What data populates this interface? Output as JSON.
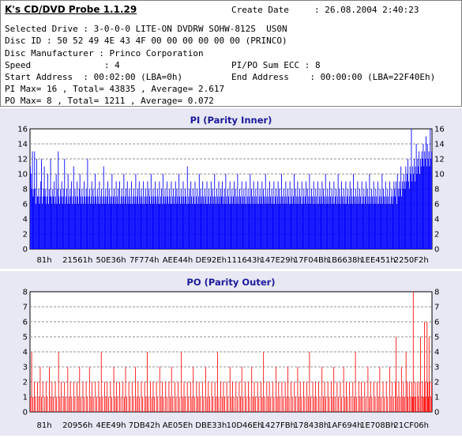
{
  "app_title": "K's CD/DVD Probe 1.1.29",
  "info": {
    "create_date_label": "Create Date",
    "create_date_value": ": 26.08.2004 2:40:23",
    "selected_drive": "Selected Drive : 3-0-0-0 LITE-ON DVDRW SOHW-812S  US0N",
    "disc_id": "Disc ID : 50 52 49 4E 43 4F 00 00 00 00 00 00 (PRINCO)",
    "disc_manufacturer": "Disc Manufacturer : Princo Corporation",
    "speed": "Speed              : 4",
    "pipo_sum": "PI/PO Sum ECC : 8",
    "start_address": "Start Address  : 00:02:00 (LBA=0h)",
    "end_address": "End Address    : 00:00:00 (LBA=22F40Eh)",
    "pi_stats": "PI Max= 16 , Total= 43835 , Average= 2.617",
    "po_stats": "PO Max= 8 , Total= 1211 , Average= 0.072"
  },
  "chart_data": [
    {
      "type": "bar",
      "title": "PI (Parity Inner)",
      "color": "#0000ff",
      "ylim": [
        0,
        16
      ],
      "yticks": [
        0,
        2,
        4,
        6,
        8,
        10,
        12,
        14,
        16
      ],
      "xticks": [
        "81h",
        "21561h",
        "50E36h",
        "7F774h",
        "AEE44h",
        "DE92Eh",
        "111643h",
        "147E29h",
        "17F04Bh",
        "1B6638h",
        "1EE451h",
        "2250F2h"
      ],
      "grid": true,
      "values": [
        11,
        10,
        8,
        13,
        7,
        8,
        13,
        8,
        6,
        12,
        7,
        7,
        8,
        6,
        7,
        9,
        12,
        6,
        7,
        8,
        11,
        7,
        8,
        6,
        7,
        10,
        6,
        8,
        7,
        12,
        7,
        6,
        8,
        7,
        9,
        6,
        7,
        10,
        6,
        8,
        13,
        7,
        6,
        8,
        7,
        9,
        6,
        7,
        8,
        12,
        6,
        7,
        8,
        6,
        10,
        7,
        6,
        8,
        7,
        9,
        6,
        7,
        11,
        6,
        8,
        7,
        6,
        9,
        7,
        6,
        8,
        10,
        7,
        6,
        8,
        7,
        6,
        9,
        7,
        6,
        8,
        7,
        12,
        6,
        7,
        8,
        6,
        7,
        9,
        6,
        8,
        7,
        6,
        10,
        7,
        6,
        8,
        7,
        6,
        9,
        6,
        7,
        8,
        6,
        7,
        11,
        6,
        7,
        8,
        6,
        7,
        9,
        6,
        8,
        7,
        6,
        7,
        10,
        6,
        7,
        8,
        6,
        7,
        9,
        6,
        7,
        8,
        6,
        9,
        6,
        7,
        8,
        6,
        7,
        10,
        6,
        7,
        8,
        6,
        9,
        7,
        6,
        8,
        7,
        6,
        9,
        6,
        7,
        8,
        6,
        7,
        10,
        6,
        7,
        8,
        6,
        9,
        7,
        6,
        8,
        7,
        6,
        9,
        6,
        7,
        8,
        6,
        7,
        9,
        6,
        8,
        7,
        6,
        10,
        7,
        6,
        8,
        7,
        6,
        9,
        7,
        6,
        8,
        7,
        6,
        9,
        6,
        7,
        8,
        6,
        10,
        7,
        6,
        8,
        7,
        6,
        9,
        7,
        6,
        8,
        7,
        6,
        9,
        6,
        7,
        8,
        6,
        7,
        9,
        6,
        8,
        7,
        6,
        10,
        7,
        6,
        8,
        7,
        6,
        9,
        7,
        6,
        8,
        7,
        6,
        11,
        6,
        7,
        8,
        6,
        9,
        7,
        6,
        8,
        7,
        6,
        9,
        6,
        7,
        8,
        6,
        7,
        10,
        6,
        8,
        7,
        6,
        9,
        7,
        6,
        8,
        7,
        6,
        9,
        6,
        7,
        8,
        6,
        7,
        9,
        6,
        8,
        7,
        6,
        10,
        7,
        6,
        8,
        7,
        6,
        9,
        7,
        6,
        8,
        7,
        9,
        6,
        7,
        8,
        6,
        10,
        7,
        6,
        8,
        7,
        6,
        9,
        6,
        7,
        8,
        6,
        7,
        9,
        6,
        8,
        7,
        6,
        10,
        7,
        6,
        8,
        7,
        6,
        9,
        7,
        6,
        8,
        7,
        6,
        9,
        6,
        7,
        8,
        6,
        7,
        10,
        6,
        8,
        7,
        6,
        9,
        7,
        6,
        8,
        7,
        6,
        9,
        6,
        7,
        8,
        6,
        7,
        9,
        6,
        8,
        7,
        6,
        10,
        7,
        6,
        8,
        7,
        6,
        9,
        7,
        6,
        8,
        7,
        6,
        9,
        6,
        7,
        8,
        6,
        7,
        9,
        6,
        8,
        7,
        6,
        10,
        7,
        6,
        8,
        7,
        6,
        9,
        7,
        6,
        8,
        7,
        6,
        9,
        6,
        7,
        8,
        6,
        7,
        10,
        6,
        8,
        7,
        6,
        9,
        7,
        6,
        8,
        7,
        6,
        9,
        6,
        7,
        8,
        6,
        7,
        9,
        6,
        8,
        7,
        6,
        10,
        7,
        6,
        8,
        7,
        6,
        9,
        7,
        6,
        8,
        7,
        6,
        9,
        6,
        7,
        8,
        6,
        7,
        9,
        6,
        8,
        7,
        6,
        10,
        7,
        6,
        8,
        7,
        6,
        9,
        7,
        6,
        8,
        7,
        6,
        9,
        6,
        7,
        8,
        6,
        7,
        10,
        6,
        8,
        7,
        6,
        9,
        7,
        6,
        8,
        7,
        6,
        9,
        6,
        7,
        8,
        6,
        7,
        9,
        6,
        8,
        7,
        6,
        10,
        7,
        6,
        8,
        7,
        6,
        9,
        7,
        6,
        8,
        7,
        6,
        9,
        6,
        7,
        8,
        6,
        7,
        9,
        6,
        8,
        7,
        6,
        10,
        7,
        6,
        8,
        7,
        6,
        9,
        7,
        6,
        8,
        7,
        6,
        9,
        6,
        7,
        8,
        6,
        7,
        10,
        6,
        8,
        7,
        6,
        9,
        7,
        6,
        8,
        7,
        6,
        9,
        6,
        7,
        8,
        6,
        7,
        9,
        8,
        7,
        9,
        6,
        10,
        8,
        7,
        9,
        8,
        11,
        7,
        9,
        8,
        10,
        9,
        8,
        11,
        9,
        10,
        12,
        9,
        8,
        11,
        10,
        16,
        9,
        11,
        10,
        12,
        9,
        11,
        14,
        10,
        12,
        11,
        13,
        10,
        12,
        11,
        13,
        12,
        14,
        11,
        13,
        12,
        15,
        11,
        14,
        12,
        13,
        11,
        16,
        12,
        13
      ]
    },
    {
      "type": "bar",
      "title": "PO (Parity Outer)",
      "color": "#ff0000",
      "ylim": [
        0,
        8
      ],
      "yticks": [
        0,
        1,
        2,
        3,
        4,
        5,
        6,
        7,
        8
      ],
      "xticks": [
        "81h",
        "20956h",
        "4EE49h",
        "7DB42h",
        "AE05Eh",
        "DBE33h",
        "10D46Eh",
        "1427FBh",
        "178438h",
        "1AF694h",
        "1E708Bh",
        "21CF06h"
      ],
      "grid": true,
      "values": [
        1,
        0,
        4,
        0,
        1,
        0,
        2,
        0,
        1,
        0,
        0,
        2,
        0,
        1,
        0,
        3,
        0,
        1,
        0,
        2,
        0,
        0,
        1,
        0,
        2,
        0,
        1,
        0,
        0,
        3,
        0,
        1,
        0,
        2,
        0,
        1,
        0,
        0,
        2,
        0,
        1,
        0,
        0,
        4,
        0,
        1,
        0,
        2,
        0,
        0,
        1,
        0,
        2,
        0,
        1,
        0,
        0,
        3,
        0,
        1,
        0,
        2,
        0,
        1,
        0,
        0,
        2,
        0,
        1,
        0,
        0,
        2,
        0,
        1,
        0,
        3,
        0,
        1,
        0,
        0,
        2,
        0,
        1,
        0,
        0,
        2,
        0,
        1,
        0,
        0,
        3,
        0,
        1,
        0,
        2,
        0,
        1,
        0,
        0,
        2,
        0,
        1,
        0,
        0,
        2,
        0,
        1,
        0,
        4,
        0,
        1,
        0,
        0,
        2,
        0,
        1,
        0,
        2,
        0,
        1,
        0,
        0,
        2,
        0,
        1,
        0,
        0,
        3,
        0,
        1,
        0,
        2,
        0,
        1,
        0,
        0,
        2,
        0,
        1,
        0,
        0,
        2,
        0,
        1,
        0,
        3,
        0,
        1,
        0,
        0,
        2,
        0,
        1,
        0,
        0,
        2,
        0,
        1,
        0,
        0,
        3,
        0,
        1,
        0,
        2,
        0,
        1,
        0,
        0,
        2,
        0,
        1,
        0,
        0,
        2,
        0,
        1,
        0,
        4,
        0,
        1,
        0,
        0,
        2,
        0,
        1,
        0,
        2,
        0,
        1,
        0,
        0,
        2,
        0,
        1,
        0,
        0,
        3,
        0,
        1,
        0,
        2,
        0,
        1,
        0,
        0,
        2,
        0,
        1,
        0,
        0,
        2,
        0,
        1,
        0,
        3,
        0,
        1,
        0,
        0,
        2,
        0,
        1,
        0,
        0,
        2,
        0,
        1,
        0,
        0,
        4,
        0,
        1,
        0,
        2,
        0,
        1,
        0,
        0,
        2,
        0,
        1,
        0,
        0,
        2,
        0,
        1,
        0,
        3,
        0,
        1,
        0,
        0,
        2,
        0,
        1,
        0,
        2,
        0,
        1,
        0,
        0,
        2,
        0,
        1,
        0,
        0,
        3,
        0,
        1,
        0,
        2,
        0,
        1,
        0,
        0,
        2,
        0,
        1,
        0,
        0,
        2,
        0,
        1,
        0,
        4,
        0,
        1,
        0,
        0,
        2,
        0,
        1,
        0,
        2,
        0,
        1,
        0,
        0,
        2,
        0,
        1,
        0,
        0,
        3,
        0,
        1,
        0,
        2,
        0,
        1,
        0,
        0,
        2,
        0,
        1,
        0,
        0,
        2,
        0,
        1,
        0,
        3,
        0,
        1,
        0,
        0,
        2,
        0,
        1,
        0,
        0,
        2,
        0,
        1,
        0,
        0,
        3,
        0,
        1,
        0,
        2,
        0,
        1,
        0,
        0,
        2,
        0,
        1,
        0,
        0,
        2,
        0,
        1,
        0,
        4,
        0,
        1,
        0,
        0,
        2,
        0,
        1,
        0,
        2,
        0,
        1,
        0,
        0,
        2,
        0,
        1,
        0,
        0,
        3,
        0,
        1,
        0,
        2,
        0,
        1,
        0,
        0,
        2,
        0,
        1,
        0,
        0,
        2,
        0,
        1,
        0,
        3,
        0,
        1,
        0,
        0,
        2,
        0,
        1,
        0,
        0,
        2,
        0,
        1,
        0,
        0,
        3,
        0,
        1,
        0,
        2,
        0,
        1,
        0,
        0,
        2,
        0,
        1,
        0,
        0,
        2,
        0,
        1,
        0,
        4,
        0,
        1,
        0,
        0,
        2,
        0,
        1,
        0,
        2,
        0,
        1,
        0,
        0,
        2,
        0,
        1,
        0,
        0,
        3,
        0,
        1,
        0,
        2,
        0,
        1,
        0,
        0,
        2,
        0,
        1,
        0,
        0,
        2,
        0,
        1,
        0,
        3,
        0,
        1,
        0,
        0,
        2,
        0,
        1,
        0,
        0,
        2,
        0,
        1,
        0,
        0,
        3,
        0,
        1,
        0,
        2,
        0,
        1,
        0,
        0,
        2,
        0,
        1,
        0,
        0,
        2,
        0,
        1,
        0,
        4,
        0,
        1,
        0,
        0,
        2,
        0,
        1,
        0,
        2,
        0,
        1,
        0,
        0,
        2,
        0,
        1,
        0,
        0,
        3,
        0,
        1,
        0,
        2,
        0,
        1,
        0,
        0,
        2,
        0,
        1,
        0,
        0,
        2,
        0,
        1,
        0,
        3,
        0,
        1,
        0,
        0,
        2,
        0,
        1,
        0,
        0,
        2,
        0,
        1,
        0,
        0,
        3,
        0,
        1,
        0,
        2,
        0,
        1,
        0,
        0,
        2,
        5,
        0,
        1,
        0,
        2,
        0,
        1,
        0,
        3,
        0,
        1,
        2,
        0,
        1,
        0,
        4,
        0,
        2,
        1,
        0,
        2,
        0,
        1,
        0,
        2,
        1,
        8,
        1,
        0,
        2,
        1,
        0,
        2,
        0,
        1,
        2,
        0,
        5,
        0,
        1,
        2,
        0,
        1,
        6,
        2,
        1,
        0,
        6,
        2,
        1,
        5,
        2,
        0,
        1,
        2
      ]
    }
  ]
}
